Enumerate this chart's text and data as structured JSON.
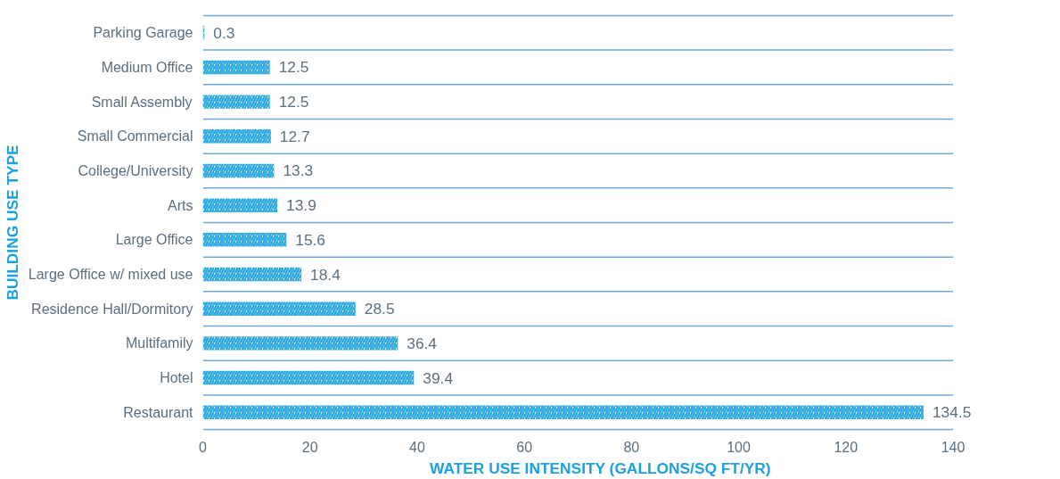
{
  "chart_data": {
    "type": "bar",
    "orientation": "horizontal",
    "categories": [
      "Parking Garage",
      "Medium Office",
      "Small Assembly",
      "Small Commercial",
      "College/University",
      "Arts",
      "Large Office",
      "Large Office w/ mixed use",
      "Residence Hall/Dormitory",
      "Multifamily",
      "Hotel",
      "Restaurant"
    ],
    "values": [
      0.3,
      12.5,
      12.5,
      12.7,
      13.3,
      13.9,
      15.6,
      18.4,
      28.5,
      36.4,
      39.4,
      134.5
    ],
    "color": "#29abe2",
    "data_labels": true,
    "xlim": [
      0,
      140
    ],
    "xticks": [
      0,
      20,
      40,
      60,
      80,
      100,
      120,
      140
    ],
    "grid": "y",
    "xlabel": "WATER USE INTENSITY (GALLONS/SQ FT/YR)",
    "ylabel": "BUILDING USE TYPE"
  }
}
